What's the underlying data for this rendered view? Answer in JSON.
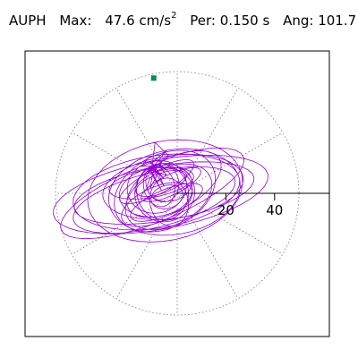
{
  "header": {
    "station": "AUPH",
    "max_label": "Max:",
    "max_value": "47.6 cm/s",
    "max_exp": "2",
    "per_label": "Per:",
    "per_value": "0.150 s",
    "ang_label": "Ang:",
    "ang_value": "101.7"
  },
  "colors": {
    "trace": "#9400d3",
    "marker": "#008b6b",
    "grid": "#777777",
    "frame": "#000000"
  },
  "chart_data": {
    "type": "polar-hodogram",
    "radial_range": [
      0,
      50
    ],
    "radial_ticks": [
      20,
      40
    ],
    "spoke_angles_deg": [
      0,
      30,
      60,
      90,
      120,
      150,
      180,
      210,
      240,
      270,
      300,
      330
    ],
    "max_point": {
      "amplitude": 47.6,
      "angle_deg": 101.7
    }
  }
}
